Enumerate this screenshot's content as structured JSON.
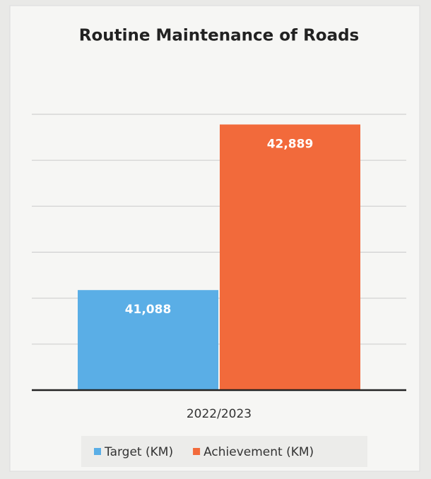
{
  "chart_data": {
    "type": "bar",
    "title": "Routine Maintenance of Roads",
    "categories": [
      "2022/2023"
    ],
    "series": [
      {
        "name": "Target (KM)",
        "color": "#5aaee6",
        "values": [
          41088
        ],
        "value_labels": [
          "41,088"
        ]
      },
      {
        "name": "Achievement (KM)",
        "color": "#f26a3b",
        "values": [
          42889
        ],
        "value_labels": [
          "42,889"
        ]
      }
    ],
    "ylim": [
      40000,
      43000
    ],
    "yticks": [
      40000,
      40500,
      41000,
      41500,
      42000,
      42500,
      43000
    ],
    "grid": true,
    "legend": "bottom"
  }
}
